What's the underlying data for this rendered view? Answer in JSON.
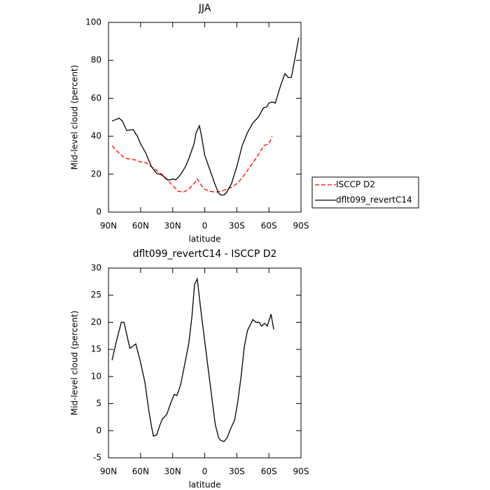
{
  "chart_data": [
    {
      "type": "line",
      "title": "JJA",
      "xlabel": "latitude",
      "ylabel": "Mid-level cloud (percent)",
      "xlim": [
        90,
        -90
      ],
      "xticks": [
        {
          "value": 90,
          "label": "90N"
        },
        {
          "value": 60,
          "label": "60N"
        },
        {
          "value": 30,
          "label": "30N"
        },
        0,
        {
          "value": -30,
          "label": "30S"
        },
        {
          "value": -60,
          "label": "60S"
        },
        {
          "value": -90,
          "label": "90S"
        }
      ],
      "ylim": [
        0,
        100
      ],
      "yticks": [
        0,
        20,
        40,
        60,
        80,
        100
      ],
      "legend": "right",
      "series": [
        {
          "name": "ISCCP D2",
          "color": "#ff0000",
          "dash": true,
          "x": [
            86.7,
            80,
            75,
            70,
            65,
            60,
            55,
            50,
            45,
            38,
            30,
            25,
            20,
            15,
            10,
            7,
            3,
            0,
            -5,
            -10,
            -15,
            -20,
            -25,
            -30,
            -35,
            -40,
            -45,
            -50,
            -55,
            -60,
            -63
          ],
          "values": [
            35,
            31,
            28.5,
            28,
            27.5,
            26.5,
            26,
            24,
            22,
            19,
            14,
            11,
            10.5,
            12,
            15,
            17.5,
            14,
            12,
            11,
            10.5,
            11,
            12,
            13,
            15,
            18,
            22,
            26,
            30,
            35,
            36,
            40
          ]
        },
        {
          "name": "dflt099_revertC14",
          "color": "#000000",
          "dash": false,
          "x": [
            86.7,
            80,
            77,
            73,
            67,
            63,
            60,
            55,
            50,
            45,
            40,
            35,
            32,
            30,
            27,
            23,
            18,
            15,
            10,
            8,
            5,
            3,
            0,
            -5,
            -10,
            -13,
            -15,
            -18,
            -20,
            -25,
            -30,
            -35,
            -40,
            -45,
            -50,
            -55,
            -58,
            -60,
            -63,
            -66,
            -70,
            -73,
            -75,
            -78,
            -81,
            -84,
            -88
          ],
          "values": [
            48,
            49.5,
            48,
            43,
            43.5,
            40,
            36,
            31,
            24,
            20.5,
            19.5,
            17,
            17,
            17.5,
            17,
            19.5,
            24,
            28,
            36,
            42,
            45.5,
            40,
            30,
            22,
            14,
            10,
            9,
            9,
            10,
            15,
            24,
            35,
            42,
            47,
            50,
            55,
            55.5,
            57.5,
            58,
            57.5,
            65,
            70,
            73,
            71,
            71,
            80,
            92
          ]
        }
      ]
    },
    {
      "type": "line",
      "title": "dflt099_revertC14 - ISCCP D2",
      "xlabel": "latitude",
      "ylabel": "Mid-level cloud (percent)",
      "xlim": [
        90,
        -90
      ],
      "xticks": [
        {
          "value": 90,
          "label": "90N"
        },
        {
          "value": 60,
          "label": "60N"
        },
        {
          "value": 30,
          "label": "30N"
        },
        0,
        {
          "value": -30,
          "label": "30S"
        },
        {
          "value": -60,
          "label": "60S"
        },
        {
          "value": -90,
          "label": "90S"
        }
      ],
      "ylim": [
        -5,
        30
      ],
      "yticks": [
        -5,
        0,
        5,
        10,
        15,
        20,
        25,
        30
      ],
      "series": [
        {
          "color": "#000000",
          "dash": false,
          "x": [
            86.7,
            82,
            78,
            75.5,
            70,
            64.5,
            60.5,
            56,
            52.5,
            50,
            48,
            45,
            42,
            39.5,
            35.5,
            32,
            28.5,
            26,
            22.5,
            19,
            15,
            12,
            9.5,
            7,
            3.5,
            0,
            -3.5,
            -7,
            -10,
            -13,
            -15,
            -18,
            -21,
            -24,
            -28,
            -31,
            -34,
            -37,
            -40,
            -43,
            -45,
            -48,
            -51,
            -53,
            -56,
            -58.5,
            -62,
            -64.5
          ],
          "values": [
            13,
            17,
            20,
            20,
            15.2,
            16,
            13,
            9,
            4,
            1,
            -1,
            -0.8,
            1,
            2.2,
            3,
            5,
            6.7,
            6.5,
            8.5,
            12,
            16,
            21,
            27,
            28,
            22,
            16.5,
            11,
            5.5,
            1,
            -1.3,
            -1.8,
            -2,
            -1.3,
            0.3,
            2,
            5.5,
            10,
            15.5,
            18.5,
            19.7,
            20.5,
            20,
            20,
            19.3,
            19.8,
            19.3,
            21.5,
            18.7
          ]
        }
      ]
    }
  ]
}
